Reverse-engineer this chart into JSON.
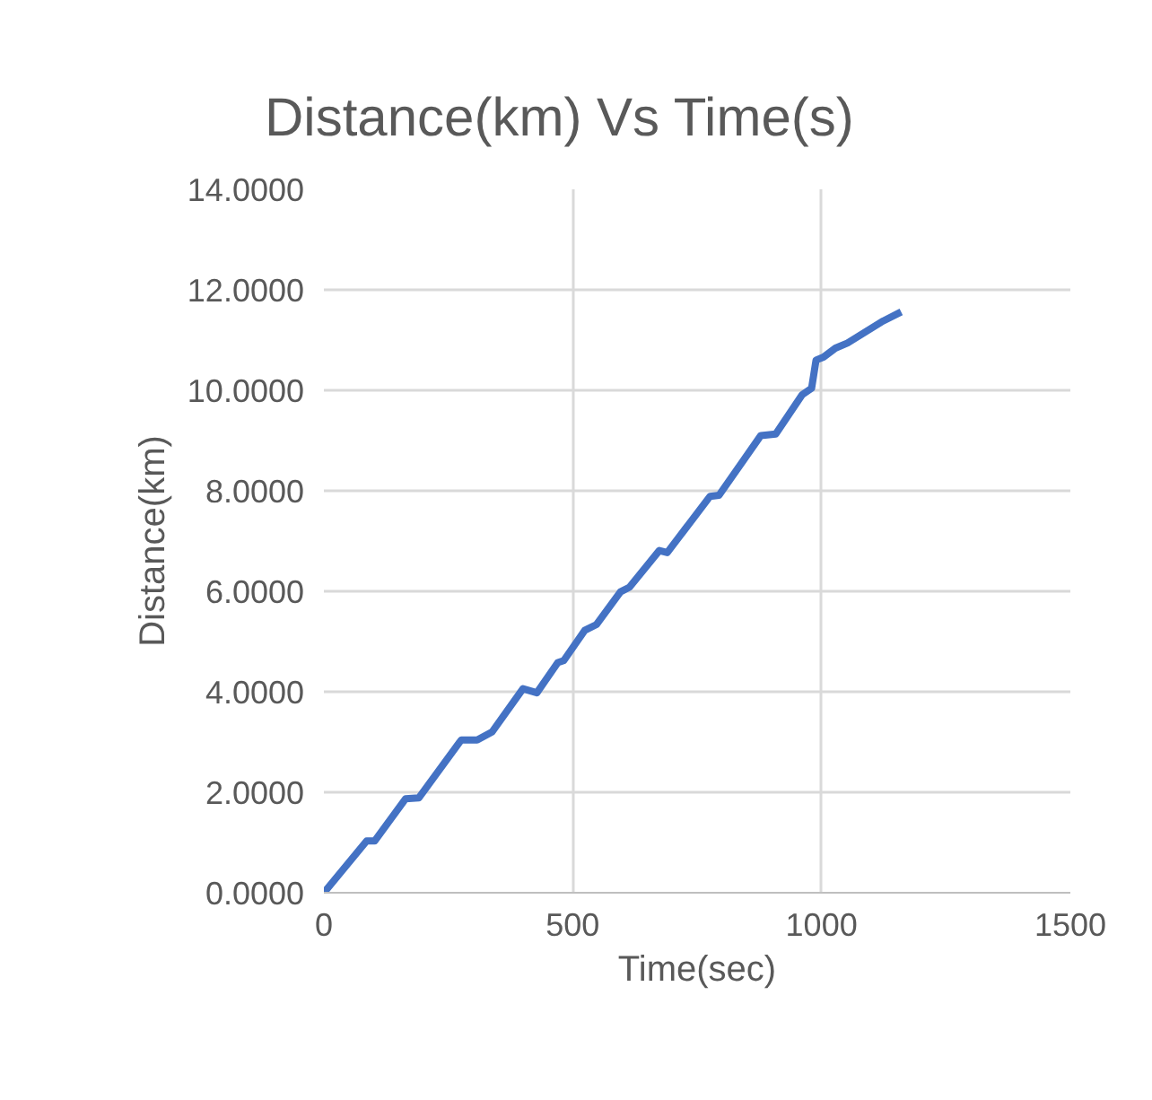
{
  "chart_data": {
    "type": "line",
    "title": "Distance(km) Vs Time(s)",
    "xlabel": "Time(sec)",
    "ylabel": "Distance(km)",
    "series": [
      {
        "color": "#4472c4",
        "x": [
          0,
          86,
          102,
          164,
          191,
          276,
          308,
          338,
          400,
          428,
          470,
          482,
          524,
          548,
          596,
          614,
          674,
          690,
          776,
          794,
          878,
          908,
          961,
          980,
          989,
          1004,
          1028,
          1052,
          1124,
          1160
        ],
        "values": [
          0,
          1.03,
          1.03,
          1.87,
          1.89,
          3.04,
          3.04,
          3.2,
          4.06,
          3.98,
          4.58,
          4.62,
          5.22,
          5.34,
          5.99,
          6.08,
          6.81,
          6.77,
          7.89,
          7.91,
          9.1,
          9.13,
          9.91,
          10.04,
          10.6,
          10.66,
          10.84,
          10.94,
          11.38,
          11.56
        ]
      }
    ],
    "xlim": [
      0,
      1500
    ],
    "xticks": [
      0,
      500,
      1000,
      1500
    ],
    "ylim": [
      0,
      14
    ],
    "yticks": [
      {
        "value": 0,
        "label": "0.0000"
      },
      {
        "value": 2,
        "label": "2.0000"
      },
      {
        "value": 4,
        "label": "4.0000"
      },
      {
        "value": 6,
        "label": "6.0000"
      },
      {
        "value": 8,
        "label": "8.0000"
      },
      {
        "value": 10,
        "label": "10.0000"
      },
      {
        "value": 12,
        "label": "12.0000"
      },
      {
        "value": 14,
        "label": "14.0000"
      }
    ],
    "grid": true,
    "marker": "none",
    "line_style": "solid"
  }
}
